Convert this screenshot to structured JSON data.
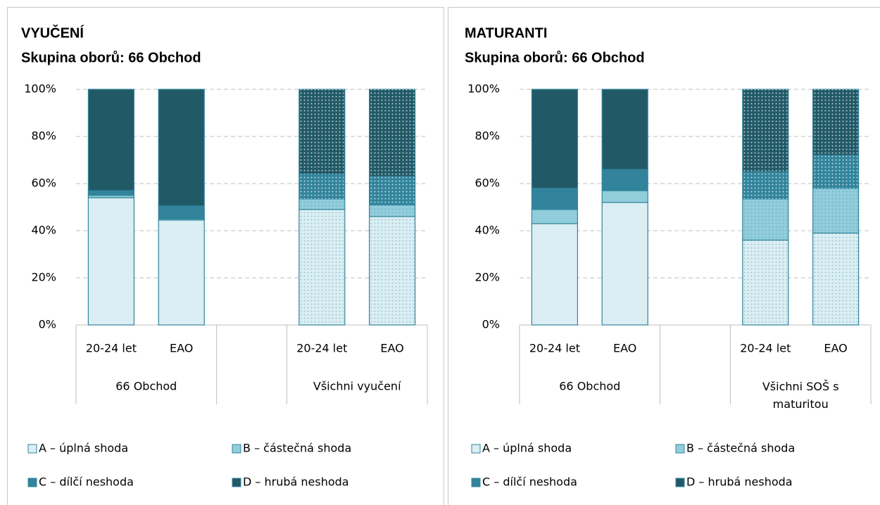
{
  "chart_data": [
    {
      "type": "stacked_bar",
      "title": "VYUČENÍ",
      "subtitle": "Skupina oborů: 66 Obchod",
      "categories": [
        "20-24 let",
        "EAO",
        null,
        "20-24 let",
        "EAO"
      ],
      "category_groups": [
        "66 Obchod",
        "66 Obchod",
        null,
        "Všichni vyučení",
        "Všichni vyučení"
      ],
      "series": [
        {
          "name": "A – úplná shoda",
          "color": "#daeef3",
          "values": [
            54,
            44.5,
            null,
            49,
            46
          ]
        },
        {
          "name": "B – částečná shoda",
          "color": "#92cddc",
          "values": [
            1,
            0.5,
            null,
            4.5,
            5
          ]
        },
        {
          "name": "C – dílčí neshoda",
          "color": "#31849b",
          "values": [
            2,
            5.5,
            null,
            10.5,
            12
          ]
        },
        {
          "name": "D – hrubá neshoda",
          "color": "#215967",
          "values": [
            43,
            49.5,
            null,
            36,
            37
          ]
        }
      ],
      "ylim": [
        0,
        100
      ],
      "yticks": [
        {
          "value": 0,
          "label": "0%"
        },
        {
          "value": 20,
          "label": "20%"
        },
        {
          "value": 40,
          "label": "40%"
        },
        {
          "value": 60,
          "label": "60%"
        },
        {
          "value": 80,
          "label": "80%"
        },
        {
          "value": 100,
          "label": "100%"
        }
      ],
      "grid": true,
      "legend": "bottom"
    },
    {
      "type": "stacked_bar",
      "title": "MATURANTI",
      "subtitle": "Skupina oborů: 66 Obchod",
      "categories": [
        "20-24 let",
        "EAO",
        null,
        "20-24 let",
        "EAO"
      ],
      "category_groups": [
        "66 Obchod",
        "66 Obchod",
        null,
        "Všichni SOŠ s maturitou",
        "Všichni SOŠ s maturitou"
      ],
      "series": [
        {
          "name": "A – úplná shoda",
          "color": "#daeef3",
          "values": [
            43,
            52,
            null,
            36,
            39
          ]
        },
        {
          "name": "B – částečná shoda",
          "color": "#92cddc",
          "values": [
            6,
            5,
            null,
            17.5,
            19
          ]
        },
        {
          "name": "C – dílčí neshoda",
          "color": "#31849b",
          "values": [
            9,
            9,
            null,
            11.5,
            14
          ]
        },
        {
          "name": "D – hrubá neshoda",
          "color": "#215967",
          "values": [
            42,
            34,
            null,
            35,
            28
          ]
        }
      ],
      "ylim": [
        0,
        100
      ],
      "yticks": [
        {
          "value": 0,
          "label": "0%"
        },
        {
          "value": 20,
          "label": "20%"
        },
        {
          "value": 40,
          "label": "40%"
        },
        {
          "value": 60,
          "label": "60%"
        },
        {
          "value": 80,
          "label": "80%"
        },
        {
          "value": 100,
          "label": "100%"
        }
      ],
      "grid": true,
      "legend": "bottom"
    }
  ]
}
